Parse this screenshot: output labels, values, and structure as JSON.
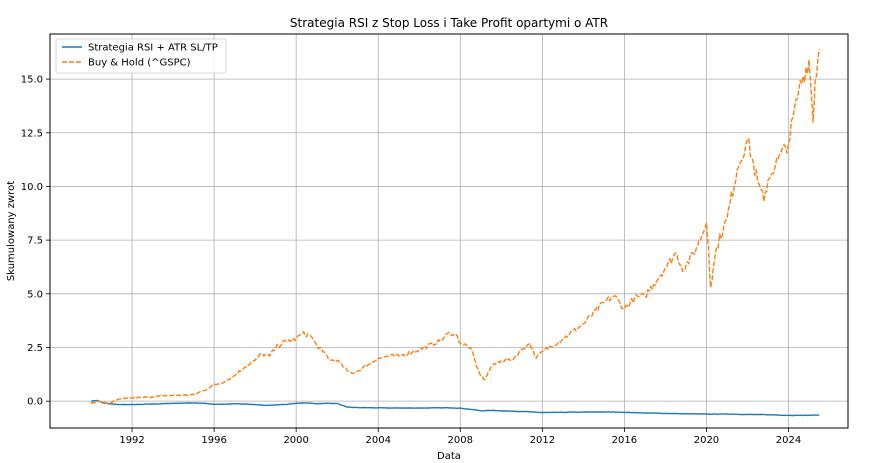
{
  "chart_data": {
    "type": "line",
    "title": "Strategia RSI z Stop Loss i Take Profit opartymi o ATR",
    "xlabel": "Data",
    "ylabel": "Skumulowany zwrot",
    "xlim": [
      1988.0,
      2026.9
    ],
    "ylim": [
      -1.25,
      17.1
    ],
    "x_ticks": [
      1992,
      1996,
      2000,
      2004,
      2008,
      2012,
      2016,
      2020,
      2024
    ],
    "x_tick_labels": [
      "1992",
      "1996",
      "2000",
      "2004",
      "2008",
      "2012",
      "2016",
      "2020",
      "2024"
    ],
    "y_ticks": [
      0,
      2.5,
      5,
      7.5,
      10,
      12.5,
      15
    ],
    "y_tick_labels": [
      "0.0",
      "2.5",
      "5.0",
      "7.5",
      "10.0",
      "12.5",
      "15.0"
    ],
    "grid": true,
    "legend_position": "top-left",
    "series": [
      {
        "name": "Strategia RSI + ATR SL/TP",
        "color": "#1f77b4",
        "dash": "solid",
        "x": [
          1990.0,
          1990.3,
          1990.6,
          1990.9,
          1991.2,
          1991.5,
          1992.0,
          1992.5,
          1993.0,
          1993.5,
          1994.0,
          1994.5,
          1995.0,
          1995.5,
          1996.0,
          1996.5,
          1997.0,
          1997.5,
          1998.0,
          1998.5,
          1999.0,
          1999.5,
          2000.0,
          2000.5,
          2001.0,
          2001.5,
          2002.0,
          2002.5,
          2003.0,
          2004.0,
          2005.0,
          2006.0,
          2007.0,
          2007.5,
          2008.0,
          2008.5,
          2009.0,
          2009.5,
          2010.0,
          2011.0,
          2012.0,
          2013.0,
          2014.0,
          2015.0,
          2016.0,
          2017.0,
          2018.0,
          2019.0,
          2020.0,
          2021.0,
          2022.0,
          2023.0,
          2024.0,
          2025.0,
          2025.5
        ],
        "y": [
          0.0,
          0.03,
          -0.08,
          -0.12,
          -0.15,
          -0.16,
          -0.16,
          -0.15,
          -0.13,
          -0.12,
          -0.1,
          -0.09,
          -0.08,
          -0.1,
          -0.15,
          -0.14,
          -0.12,
          -0.13,
          -0.16,
          -0.2,
          -0.17,
          -0.15,
          -0.1,
          -0.08,
          -0.12,
          -0.1,
          -0.11,
          -0.28,
          -0.3,
          -0.31,
          -0.32,
          -0.32,
          -0.31,
          -0.31,
          -0.33,
          -0.38,
          -0.45,
          -0.43,
          -0.45,
          -0.48,
          -0.53,
          -0.52,
          -0.51,
          -0.5,
          -0.52,
          -0.55,
          -0.57,
          -0.59,
          -0.6,
          -0.6,
          -0.62,
          -0.63,
          -0.66,
          -0.66,
          -0.64
        ]
      },
      {
        "name": "Buy & Hold (^GSPC)",
        "color": "#ff7f0e",
        "dash": "dashed",
        "x": [
          1990.0,
          1990.3,
          1990.6,
          1990.9,
          1991.2,
          1991.5,
          1992.0,
          1992.5,
          1993.0,
          1993.5,
          1994.0,
          1994.5,
          1995.0,
          1995.5,
          1996.0,
          1996.5,
          1997.0,
          1997.5,
          1998.0,
          1998.3,
          1998.7,
          1999.0,
          1999.5,
          2000.0,
          2000.3,
          2000.7,
          2001.0,
          2001.3,
          2001.7,
          2002.0,
          2002.5,
          2002.8,
          2003.0,
          2003.5,
          2004.0,
          2004.5,
          2005.0,
          2006.0,
          2007.0,
          2007.5,
          2007.8,
          2008.0,
          2008.5,
          2008.8,
          2009.0,
          2009.2,
          2009.5,
          2010.0,
          2010.5,
          2011.0,
          2011.4,
          2011.7,
          2012.0,
          2013.0,
          2014.0,
          2015.0,
          2015.5,
          2016.0,
          2016.5,
          2017.0,
          2018.0,
          2018.5,
          2018.9,
          2019.0,
          2019.5,
          2020.0,
          2020.1,
          2020.2,
          2020.5,
          2021.0,
          2021.5,
          2022.0,
          2022.5,
          2022.8,
          2023.0,
          2023.5,
          2024.0,
          2024.5,
          2025.0,
          2025.2,
          2025.3,
          2025.5
        ],
        "y": [
          -0.1,
          -0.05,
          -0.02,
          -0.15,
          0.05,
          0.1,
          0.15,
          0.17,
          0.2,
          0.25,
          0.27,
          0.28,
          0.3,
          0.5,
          0.75,
          0.9,
          1.2,
          1.6,
          1.9,
          2.2,
          2.1,
          2.5,
          2.8,
          2.9,
          3.15,
          3.05,
          2.6,
          2.3,
          1.9,
          1.9,
          1.4,
          1.3,
          1.4,
          1.7,
          2.0,
          2.1,
          2.1,
          2.4,
          2.8,
          3.2,
          3.1,
          2.7,
          2.5,
          1.6,
          1.2,
          1.0,
          1.6,
          1.9,
          1.9,
          2.4,
          2.7,
          2.0,
          2.3,
          2.9,
          3.6,
          4.6,
          4.9,
          4.3,
          4.8,
          4.9,
          6.2,
          6.9,
          6.1,
          6.3,
          7.1,
          8.3,
          7.2,
          5.3,
          7.2,
          8.5,
          10.8,
          12.2,
          10.2,
          9.3,
          10.3,
          11.3,
          12.0,
          14.5,
          15.9,
          13.0,
          15.0,
          16.4
        ]
      }
    ]
  }
}
